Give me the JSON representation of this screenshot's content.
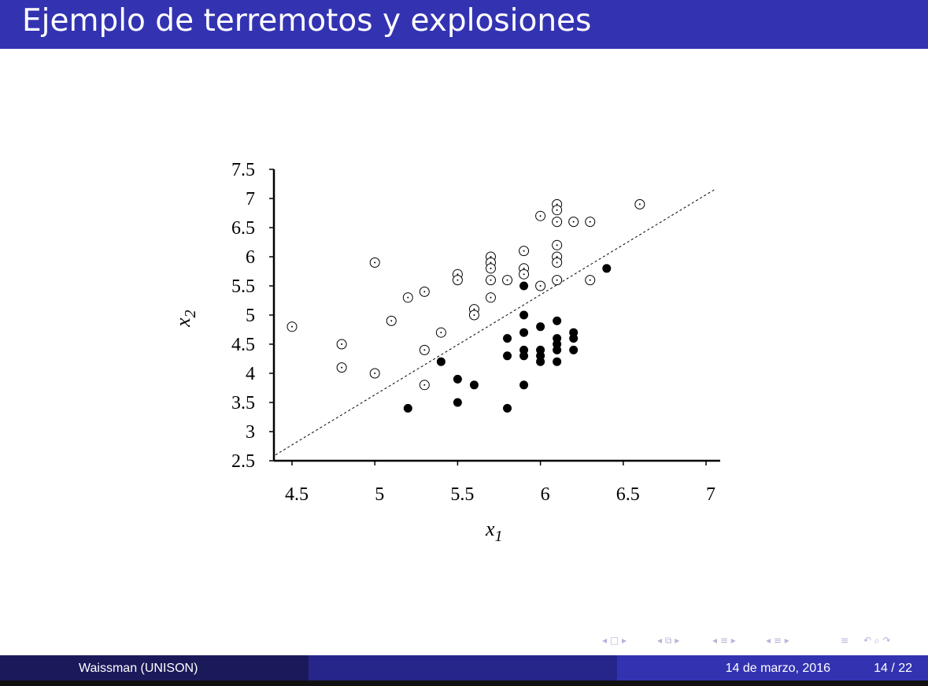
{
  "slide": {
    "title": "Ejemplo de terremotos y explosiones",
    "author": "Waissman  (UNISON)",
    "date": "14 de marzo, 2016",
    "page": "14 / 22"
  },
  "colors": {
    "title_bar": "#3333b2",
    "footer_left": "#1a1a5a",
    "footer_mid": "#26268a",
    "footer_right": "#3333b2",
    "nav": "#b4b4dc"
  },
  "navigation": {
    "icons": [
      "nav-first-icon",
      "nav-frame-icon",
      "nav-subsection-icon",
      "nav-section-icon",
      "nav-align-icon",
      "nav-search-icon"
    ]
  },
  "chart_data": {
    "type": "scatter",
    "title": "",
    "xlabel": "x",
    "xlabel_sub": "1",
    "ylabel": "x",
    "ylabel_sub": "2",
    "xlim": [
      4.4,
      7.1
    ],
    "ylim": [
      2.5,
      7.5
    ],
    "x_ticks": [
      4.5,
      5,
      5.5,
      6,
      6.5,
      7
    ],
    "x_tick_labels": [
      "4.5",
      "5",
      "5.5",
      "6",
      "6.5",
      "7"
    ],
    "y_ticks": [
      2.5,
      3,
      3.5,
      4,
      4.5,
      5,
      5.5,
      6,
      6.5,
      7,
      7.5
    ],
    "y_tick_labels": [
      "2.5",
      "3",
      "3.5",
      "4",
      "4.5",
      "5",
      "5.5",
      "6",
      "6.5",
      "7",
      "7.5"
    ],
    "grid": false,
    "legend": "none",
    "boundary_line": {
      "x": [
        4.4,
        7.05
      ],
      "y": [
        2.6,
        7.15
      ]
    },
    "series": [
      {
        "marker": "open-circle-dot",
        "points": [
          [
            4.5,
            4.8
          ],
          [
            4.8,
            4.5
          ],
          [
            4.8,
            4.1
          ],
          [
            5.0,
            5.9
          ],
          [
            5.0,
            4.0
          ],
          [
            5.1,
            4.9
          ],
          [
            5.2,
            5.3
          ],
          [
            5.3,
            5.4
          ],
          [
            5.3,
            4.4
          ],
          [
            5.3,
            3.8
          ],
          [
            5.4,
            4.7
          ],
          [
            5.5,
            5.7
          ],
          [
            5.5,
            5.6
          ],
          [
            5.6,
            5.1
          ],
          [
            5.6,
            5.0
          ],
          [
            5.7,
            6.0
          ],
          [
            5.7,
            5.9
          ],
          [
            5.7,
            5.8
          ],
          [
            5.7,
            5.6
          ],
          [
            5.7,
            5.3
          ],
          [
            5.8,
            5.6
          ],
          [
            5.9,
            6.1
          ],
          [
            5.9,
            5.8
          ],
          [
            5.9,
            5.7
          ],
          [
            6.0,
            6.7
          ],
          [
            6.0,
            5.5
          ],
          [
            6.1,
            6.9
          ],
          [
            6.1,
            6.8
          ],
          [
            6.1,
            6.6
          ],
          [
            6.1,
            6.2
          ],
          [
            6.1,
            6.0
          ],
          [
            6.1,
            5.9
          ],
          [
            6.1,
            5.6
          ],
          [
            6.2,
            6.6
          ],
          [
            6.3,
            6.6
          ],
          [
            6.3,
            5.6
          ],
          [
            6.6,
            6.9
          ]
        ]
      },
      {
        "marker": "filled-circle",
        "points": [
          [
            5.2,
            3.4
          ],
          [
            5.4,
            4.2
          ],
          [
            5.5,
            3.9
          ],
          [
            5.5,
            3.5
          ],
          [
            5.6,
            3.8
          ],
          [
            5.8,
            3.4
          ],
          [
            5.8,
            4.6
          ],
          [
            5.8,
            4.3
          ],
          [
            5.9,
            5.5
          ],
          [
            5.9,
            5.0
          ],
          [
            5.9,
            4.7
          ],
          [
            5.9,
            4.4
          ],
          [
            5.9,
            4.3
          ],
          [
            5.9,
            3.8
          ],
          [
            6.0,
            4.8
          ],
          [
            6.0,
            4.4
          ],
          [
            6.0,
            4.3
          ],
          [
            6.0,
            4.2
          ],
          [
            6.1,
            4.9
          ],
          [
            6.1,
            4.6
          ],
          [
            6.1,
            4.5
          ],
          [
            6.1,
            4.4
          ],
          [
            6.1,
            4.2
          ],
          [
            6.2,
            4.7
          ],
          [
            6.2,
            4.6
          ],
          [
            6.2,
            4.4
          ],
          [
            6.4,
            5.8
          ]
        ]
      }
    ]
  }
}
